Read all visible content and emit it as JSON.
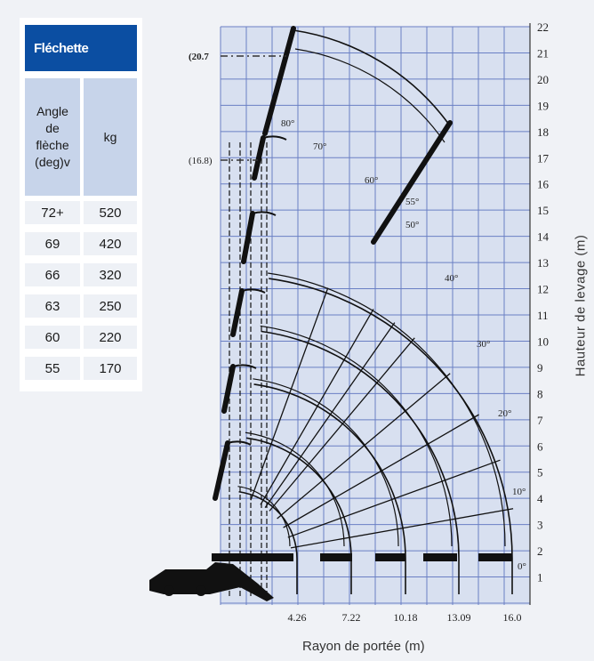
{
  "load_table": {
    "title": "Fléchette",
    "col_angle_header": [
      "Angle",
      "de",
      "flèche",
      "(deg)v"
    ],
    "col_kg_header": "kg",
    "rows": [
      {
        "angle": "72+",
        "kg": "520"
      },
      {
        "angle": "69",
        "kg": "420"
      },
      {
        "angle": "66",
        "kg": "320"
      },
      {
        "angle": "63",
        "kg": "250"
      },
      {
        "angle": "60",
        "kg": "220"
      },
      {
        "angle": "55",
        "kg": "170"
      }
    ]
  },
  "diagram": {
    "x_title": "Rayon de portée (m)",
    "y_title": "Hauteur de levage (m)",
    "y_ticks": [
      "1",
      "2",
      "3",
      "4",
      "5",
      "6",
      "7",
      "8",
      "9",
      "10",
      "11",
      "12",
      "13",
      "14",
      "15",
      "16",
      "17",
      "18",
      "19",
      "20",
      "21",
      "22"
    ],
    "x_ticks": [
      "4.26",
      "7.22",
      "10.18",
      "13.09",
      "16.0"
    ],
    "angle_labels": [
      "80°",
      "70°",
      "60°",
      "55°",
      "50°",
      "40°",
      "30°",
      "20°",
      "10°",
      "0°"
    ],
    "height_callouts": [
      "20.7",
      "(16.8)"
    ],
    "colors": {
      "grid_bg": "#d8e0f0",
      "grid_line": "#6a7fc4",
      "curve": "#111111",
      "table_header": "#0b4ea2",
      "table_col_head": "#c7d4ea"
    }
  }
}
